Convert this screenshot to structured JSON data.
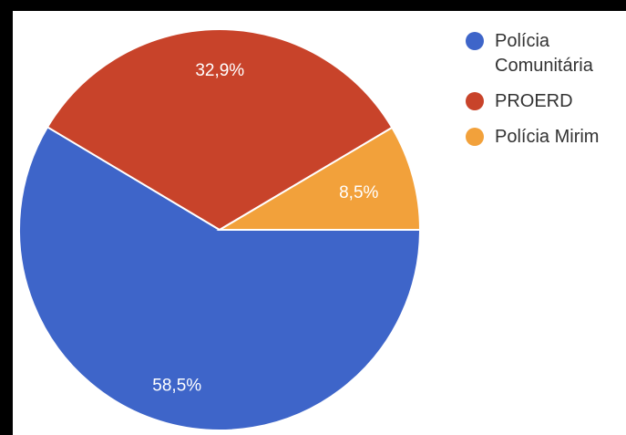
{
  "chart_data": {
    "type": "pie",
    "title": "",
    "series": [
      {
        "name": "Polícia Comunitária",
        "value": 58.5,
        "label": "58,5%",
        "color": "#3e65c9"
      },
      {
        "name": "PROERD",
        "value": 32.9,
        "label": "32,9%",
        "color": "#c8432a"
      },
      {
        "name": "Polícia Mirim",
        "value": 8.5,
        "label": "8,5%",
        "color": "#f2a13b"
      }
    ],
    "legend_position": "top-right",
    "slice_border_color": "#ffffff"
  }
}
